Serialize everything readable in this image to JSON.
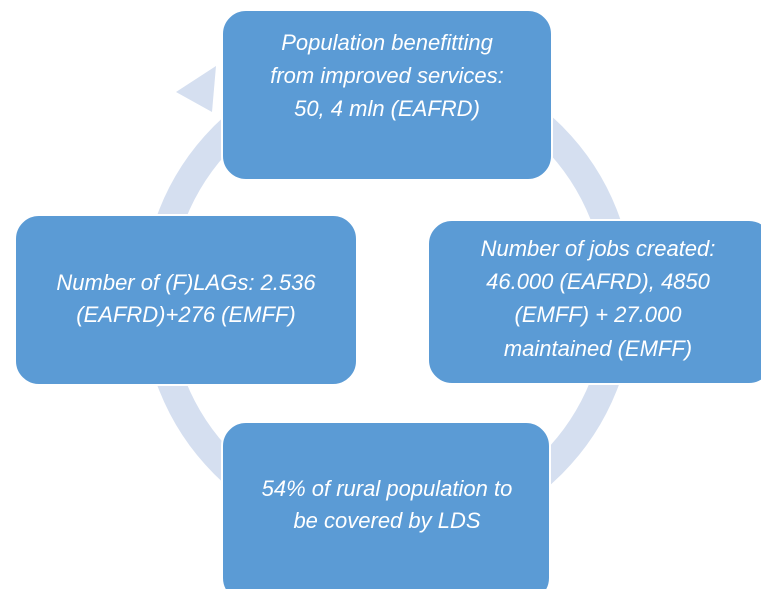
{
  "nodes": [
    {
      "lines": [
        "Population benefitting",
        "from improved services:",
        "50, 4 mln (EAFRD)"
      ]
    },
    {
      "lines": [
        "Number of jobs created:",
        "46.000 (EAFRD), 4850",
        "(EMFF) + 27.000",
        "maintained (EMFF)"
      ]
    },
    {
      "lines": [
        "54% of rural population to",
        "be covered by LDS"
      ]
    },
    {
      "lines": [
        "Number of (F)LAGs: 2.536",
        "(EAFRD)+276 (EMFF)"
      ]
    }
  ]
}
